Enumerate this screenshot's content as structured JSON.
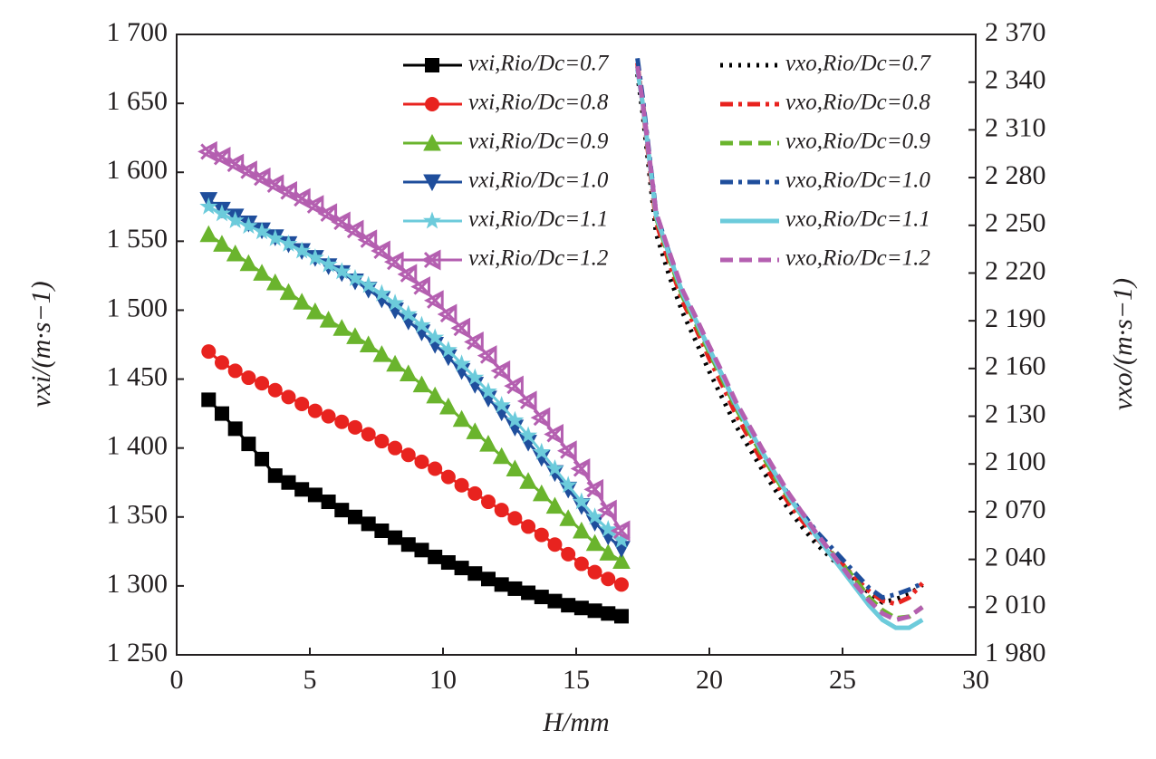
{
  "chart_data": {
    "type": "line",
    "xlabel": "H/mm",
    "ylabel": "vxi/(m·s−1)",
    "y2label": "vxo/(m·s−1)",
    "xlim": [
      0,
      30
    ],
    "xticks": [
      0,
      5,
      10,
      15,
      20,
      25,
      30
    ],
    "ylim": [
      1250,
      1700
    ],
    "yticks": [
      {
        "value": 1250,
        "label": "1 250"
      },
      {
        "value": 1300,
        "label": "1 300"
      },
      {
        "value": 1350,
        "label": "1 350"
      },
      {
        "value": 1400,
        "label": "1 400"
      },
      {
        "value": 1450,
        "label": "1 450"
      },
      {
        "value": 1500,
        "label": "1 500"
      },
      {
        "value": 1550,
        "label": "1 550"
      },
      {
        "value": 1600,
        "label": "1 600"
      },
      {
        "value": 1650,
        "label": "1 650"
      },
      {
        "value": 1700,
        "label": "1 700"
      }
    ],
    "y2lim": [
      1980,
      2370
    ],
    "y2ticks": [
      {
        "value": 1980,
        "label": "1 980"
      },
      {
        "value": 2010,
        "label": "2 010"
      },
      {
        "value": 2040,
        "label": "2 040"
      },
      {
        "value": 2070,
        "label": "2 070"
      },
      {
        "value": 2100,
        "label": "2 100"
      },
      {
        "value": 2130,
        "label": "2 130"
      },
      {
        "value": 2160,
        "label": "2 160"
      },
      {
        "value": 2190,
        "label": "2 190"
      },
      {
        "value": 2220,
        "label": "2 220"
      },
      {
        "value": 2250,
        "label": "2 250"
      },
      {
        "value": 2280,
        "label": "2 280"
      },
      {
        "value": 2310,
        "label": "2 310"
      },
      {
        "value": 2340,
        "label": "2 340"
      },
      {
        "value": 2370,
        "label": "2 370"
      }
    ],
    "series": [
      {
        "name": "vxi,Rio/Dc=0.7",
        "color": "#000000",
        "marker": "square",
        "axis": "y",
        "x": [
          1.2,
          1.7,
          2.2,
          2.7,
          3.2,
          3.7,
          4.2,
          4.7,
          5.2,
          5.7,
          6.2,
          6.7,
          7.2,
          7.7,
          8.2,
          8.7,
          9.2,
          9.7,
          10.2,
          10.7,
          11.2,
          11.7,
          12.2,
          12.7,
          13.2,
          13.7,
          14.2,
          14.7,
          15.2,
          15.7,
          16.2,
          16.7
        ],
        "values": [
          1435,
          1425,
          1414,
          1403,
          1392,
          1380,
          1375,
          1370,
          1366,
          1361,
          1355,
          1350,
          1345,
          1340,
          1335,
          1330,
          1326,
          1321,
          1317,
          1313,
          1309,
          1305,
          1301,
          1298,
          1295,
          1292,
          1289,
          1286,
          1284,
          1282,
          1280,
          1278
        ]
      },
      {
        "name": "vxi,Rio/Dc=0.8",
        "color": "#e8231f",
        "marker": "circle",
        "axis": "y",
        "x": [
          1.2,
          1.7,
          2.2,
          2.7,
          3.2,
          3.7,
          4.2,
          4.7,
          5.2,
          5.7,
          6.2,
          6.7,
          7.2,
          7.7,
          8.2,
          8.7,
          9.2,
          9.7,
          10.2,
          10.7,
          11.2,
          11.7,
          12.2,
          12.7,
          13.2,
          13.7,
          14.2,
          14.7,
          15.2,
          15.7,
          16.2,
          16.7
        ],
        "values": [
          1470,
          1462,
          1456,
          1451,
          1447,
          1442,
          1437,
          1432,
          1427,
          1423,
          1419,
          1415,
          1410,
          1405,
          1400,
          1395,
          1390,
          1385,
          1379,
          1373,
          1367,
          1361,
          1355,
          1349,
          1343,
          1337,
          1330,
          1323,
          1316,
          1310,
          1305,
          1301
        ]
      },
      {
        "name": "vxi,Rio/Dc=0.9",
        "color": "#6ab42d",
        "marker": "triangle-up",
        "axis": "y",
        "x": [
          1.2,
          1.7,
          2.2,
          2.7,
          3.2,
          3.7,
          4.2,
          4.7,
          5.2,
          5.7,
          6.2,
          6.7,
          7.2,
          7.7,
          8.2,
          8.7,
          9.2,
          9.7,
          10.2,
          10.7,
          11.2,
          11.7,
          12.2,
          12.7,
          13.2,
          13.7,
          14.2,
          14.7,
          15.2,
          15.7,
          16.2,
          16.7
        ],
        "values": [
          1555,
          1548,
          1541,
          1534,
          1527,
          1520,
          1513,
          1506,
          1499,
          1493,
          1487,
          1481,
          1475,
          1468,
          1461,
          1454,
          1446,
          1438,
          1430,
          1421,
          1412,
          1403,
          1394,
          1385,
          1376,
          1367,
          1358,
          1349,
          1340,
          1331,
          1324,
          1318
        ]
      },
      {
        "name": "vxi,Rio/Dc=1.0",
        "color": "#1f4e9c",
        "marker": "triangle-down",
        "axis": "y",
        "x": [
          1.2,
          1.7,
          2.2,
          2.7,
          3.2,
          3.7,
          4.2,
          4.7,
          5.2,
          5.7,
          6.2,
          6.7,
          7.2,
          7.7,
          8.2,
          8.7,
          9.2,
          9.7,
          10.2,
          10.7,
          11.2,
          11.7,
          12.2,
          12.7,
          13.2,
          13.7,
          14.2,
          14.7,
          15.2,
          15.7,
          16.2,
          16.7
        ],
        "values": [
          1580,
          1573,
          1568,
          1563,
          1558,
          1553,
          1548,
          1543,
          1538,
          1532,
          1527,
          1521,
          1515,
          1508,
          1500,
          1492,
          1484,
          1475,
          1466,
          1456,
          1446,
          1436,
          1426,
          1415,
          1404,
          1393,
          1382,
          1370,
          1358,
          1346,
          1336,
          1327
        ]
      },
      {
        "name": "vxi,Rio/Dc=1.1",
        "color": "#6ccbdb",
        "marker": "star",
        "axis": "y",
        "x": [
          1.2,
          1.7,
          2.2,
          2.7,
          3.2,
          3.7,
          4.2,
          4.7,
          5.2,
          5.7,
          6.2,
          6.7,
          7.2,
          7.7,
          8.2,
          8.7,
          9.2,
          9.7,
          10.2,
          10.7,
          11.2,
          11.7,
          12.2,
          12.7,
          13.2,
          13.7,
          14.2,
          14.7,
          15.2,
          15.7,
          16.2,
          16.7
        ],
        "values": [
          1575,
          1570,
          1565,
          1561,
          1557,
          1552,
          1548,
          1543,
          1538,
          1533,
          1528,
          1523,
          1518,
          1512,
          1505,
          1497,
          1489,
          1480,
          1471,
          1461,
          1451,
          1441,
          1431,
          1420,
          1409,
          1397,
          1385,
          1373,
          1361,
          1350,
          1341,
          1333
        ]
      },
      {
        "name": "vxi,Rio/Dc=1.2",
        "color": "#b45fb0",
        "marker": "triangle-left",
        "axis": "y",
        "x": [
          1.2,
          1.7,
          2.2,
          2.7,
          3.2,
          3.7,
          4.2,
          4.7,
          5.2,
          5.7,
          6.2,
          6.7,
          7.2,
          7.7,
          8.2,
          8.7,
          9.2,
          9.7,
          10.2,
          10.7,
          11.2,
          11.7,
          12.2,
          12.7,
          13.2,
          13.7,
          14.2,
          14.7,
          15.2,
          15.7,
          16.2,
          16.7
        ],
        "values": [
          1615,
          1611,
          1606,
          1601,
          1596,
          1591,
          1586,
          1581,
          1576,
          1570,
          1564,
          1558,
          1551,
          1543,
          1535,
          1526,
          1517,
          1507,
          1497,
          1487,
          1477,
          1467,
          1456,
          1445,
          1434,
          1422,
          1410,
          1398,
          1385,
          1370,
          1355,
          1340
        ]
      },
      {
        "name": "vxo,Rio/Dc=0.7",
        "color": "#000000",
        "dash": "dotted",
        "axis": "y2",
        "x": [
          17.3,
          17.5,
          18,
          18.5,
          19,
          19.5,
          20,
          20.5,
          21,
          21.5,
          22,
          22.5,
          23,
          23.5,
          24,
          24.5,
          25,
          25.5,
          26,
          26.5,
          27,
          27.5,
          28
        ],
        "values": [
          2345,
          2320,
          2245,
          2218,
          2195,
          2177,
          2158,
          2141,
          2124,
          2110,
          2096,
          2083,
          2071,
          2060,
          2050,
          2042,
          2034,
          2026,
          2019,
          2013,
          2015,
          2018,
          2024
        ]
      },
      {
        "name": "vxo,Rio/Dc=0.8",
        "color": "#e8231f",
        "dash": "dash-dot",
        "axis": "y2",
        "x": [
          17.3,
          17.5,
          18,
          18.5,
          19,
          19.5,
          20,
          20.5,
          21,
          21.5,
          22,
          22.5,
          23,
          23.5,
          24,
          24.5,
          25,
          25.5,
          26,
          26.5,
          27,
          27.5,
          28
        ],
        "values": [
          2352,
          2325,
          2252,
          2226,
          2202,
          2185,
          2166,
          2149,
          2131,
          2116,
          2101,
          2088,
          2075,
          2064,
          2054,
          2045,
          2037,
          2028,
          2020,
          2014,
          2012,
          2016,
          2025
        ]
      },
      {
        "name": "vxo,Rio/Dc=0.9",
        "color": "#6ab42d",
        "dash": "dashed",
        "axis": "y2",
        "x": [
          17.3,
          17.5,
          18,
          18.5,
          19,
          19.5,
          20,
          20.5,
          21,
          21.5,
          22,
          22.5,
          23,
          23.5,
          24,
          24.5,
          25,
          25.5,
          26,
          26.5,
          27,
          27.5,
          28
        ],
        "values": [
          2350,
          2328,
          2255,
          2229,
          2205,
          2188,
          2170,
          2153,
          2135,
          2120,
          2105,
          2091,
          2078,
          2067,
          2056,
          2046,
          2037,
          2027,
          2016,
          2008,
          2003,
          2004,
          2010
        ]
      },
      {
        "name": "vxo,Rio/Dc=1.0",
        "color": "#1f4e9c",
        "dash": "dash-dot",
        "axis": "y2",
        "x": [
          17.3,
          17.5,
          18,
          18.5,
          19,
          19.5,
          20,
          20.5,
          21,
          21.5,
          22,
          22.5,
          23,
          23.5,
          24,
          24.5,
          25,
          25.5,
          26,
          26.5,
          27,
          27.5,
          28
        ],
        "values": [
          2355,
          2330,
          2258,
          2232,
          2207,
          2190,
          2172,
          2155,
          2137,
          2122,
          2107,
          2093,
          2080,
          2069,
          2058,
          2049,
          2040,
          2031,
          2022,
          2016,
          2018,
          2021,
          2025
        ]
      },
      {
        "name": "vxo,Rio/Dc=1.1",
        "color": "#6ccbdb",
        "dash": "solid",
        "axis": "y2",
        "x": [
          17.3,
          17.5,
          18,
          18.5,
          19,
          19.5,
          20,
          20.5,
          21,
          21.5,
          22,
          22.5,
          23,
          23.5,
          24,
          24.5,
          25,
          25.5,
          26,
          26.5,
          27,
          27.5,
          28
        ],
        "values": [
          2348,
          2326,
          2256,
          2231,
          2207,
          2190,
          2172,
          2155,
          2137,
          2122,
          2107,
          2093,
          2079,
          2067,
          2055,
          2044,
          2033,
          2022,
          2011,
          2002,
          1997,
          1997,
          2002
        ]
      },
      {
        "name": "vxo,Rio/Dc=1.2",
        "color": "#b45fb0",
        "dash": "dashed",
        "axis": "y2",
        "x": [
          17.3,
          17.5,
          18,
          18.5,
          19,
          19.5,
          20,
          20.5,
          21,
          21.5,
          22,
          22.5,
          23,
          23.5,
          24,
          24.5,
          25,
          25.5,
          26,
          26.5,
          27,
          27.5,
          28
        ],
        "values": [
          2350,
          2327,
          2258,
          2233,
          2209,
          2192,
          2174,
          2157,
          2139,
          2124,
          2109,
          2095,
          2081,
          2069,
          2057,
          2046,
          2035,
          2024,
          2014,
          2006,
          2002,
          2004,
          2010
        ]
      }
    ]
  }
}
